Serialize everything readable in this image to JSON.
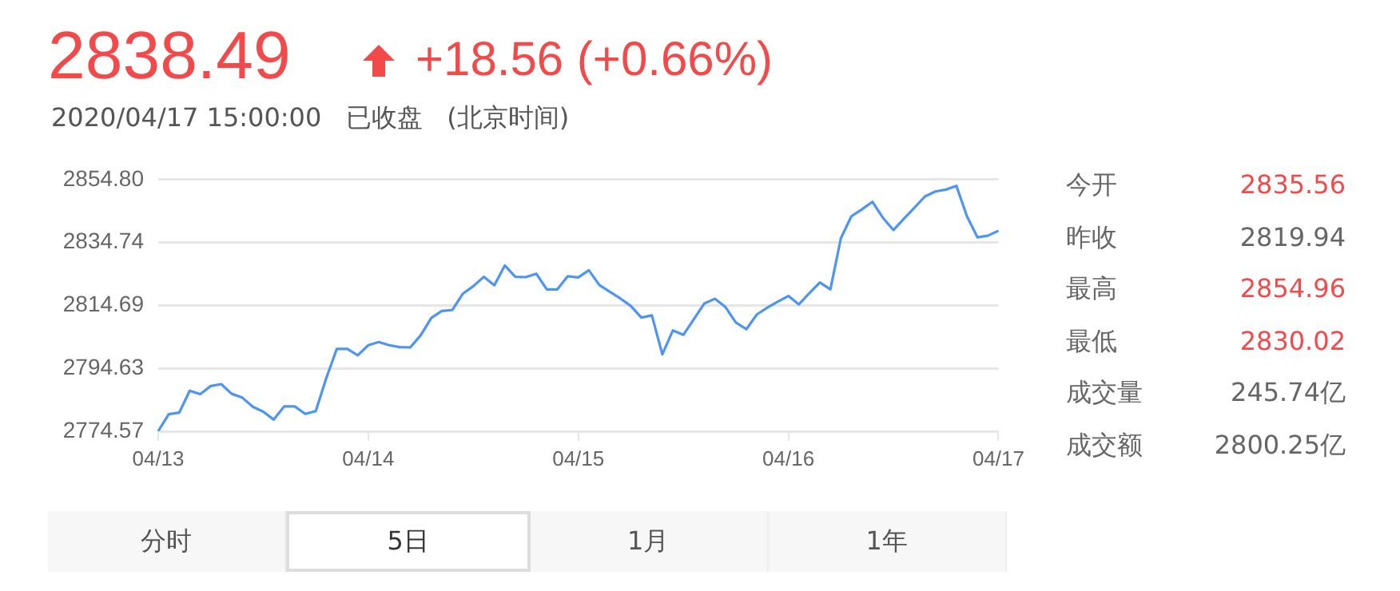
{
  "chart_data": {
    "type": "line",
    "title": "2838.49",
    "subtitle": "2020/04/17 15:00:00   已收盘   (北京时间)",
    "annotations": [
      "+18.56 (+0.66%)",
      "今开 2835.56",
      "昨收 2819.94",
      "最高 2854.96",
      "最低 2830.02",
      "成交量 245.74亿",
      "成交额 2800.25亿",
      "分时",
      "5日",
      "1月",
      "1年"
    ],
    "categories": [
      "04/13",
      null,
      null,
      null,
      null,
      null,
      null,
      null,
      null,
      null,
      null,
      null,
      null,
      null,
      null,
      null,
      null,
      null,
      null,
      null,
      "04/14",
      null,
      null,
      null,
      null,
      null,
      null,
      null,
      null,
      null,
      null,
      null,
      null,
      null,
      null,
      null,
      null,
      null,
      null,
      null,
      "04/15",
      null,
      null,
      null,
      null,
      null,
      null,
      null,
      null,
      null,
      null,
      null,
      null,
      null,
      null,
      null,
      null,
      null,
      null,
      null,
      "04/16",
      null,
      null,
      null,
      null,
      null,
      null,
      null,
      null,
      null,
      null,
      null,
      null,
      null,
      null,
      null,
      null,
      null,
      null,
      null,
      "04/17"
    ],
    "series": [
      {
        "color": "#4d94f5",
        "values": [
          2774.6,
          2780.0,
          2780.5,
          2787.5,
          2786.4,
          2789.0,
          2789.6,
          2786.5,
          2785.3,
          2782.4,
          2780.8,
          2778.3,
          2782.5,
          2782.5,
          2780.1,
          2781.0,
          2791.5,
          2800.8,
          2800.8,
          2798.8,
          2802.0,
          2803.0,
          2802.0,
          2801.4,
          2801.3,
          2805.2,
          2810.7,
          2812.9,
          2813.2,
          2818.4,
          2820.8,
          2823.8,
          2821.1,
          2827.4,
          2823.8,
          2823.7,
          2824.8,
          2819.8,
          2819.8,
          2824.0,
          2823.6,
          2825.9,
          2821.2,
          2819.0,
          2816.9,
          2814.5,
          2810.8,
          2811.5,
          2799.1,
          2806.7,
          2805.3,
          2810.3,
          2815.3,
          2816.8,
          2814.2,
          2809.2,
          2807.1,
          2811.8,
          2814.0,
          2815.9,
          2817.7,
          2815.0,
          2818.6,
          2822.0,
          2819.8,
          2836.1,
          2843.1,
          2845.3,
          2847.7,
          2842.6,
          2838.7,
          2842.3,
          2845.8,
          2849.4,
          2851.0,
          2851.6,
          2852.8,
          2843.1,
          2836.4,
          2836.9,
          2838.5
        ]
      }
    ],
    "ylim": [
      2774.57,
      2854.8
    ],
    "yticks": [
      {
        "value": 2774.57,
        "label": "2774.57"
      },
      {
        "value": 2794.63,
        "label": "2794.63"
      },
      {
        "value": 2814.69,
        "label": "2814.69"
      },
      {
        "value": 2834.74,
        "label": "2834.74"
      },
      {
        "value": 2854.8,
        "label": "2854.80"
      }
    ],
    "grid": "y",
    "marker": "none",
    "line_style": "solid",
    "legend": false
  }
}
